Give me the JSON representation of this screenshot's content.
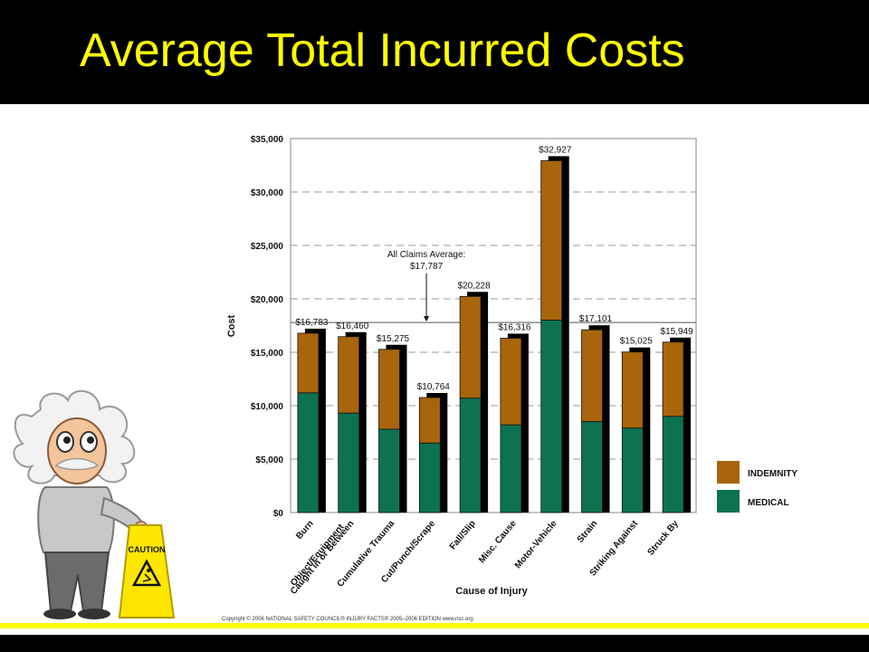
{
  "slide": {
    "title": "Average Total Incurred Costs",
    "copyright": "Copyright © 2006   NATIONAL SAFETY COUNCIL®   INJURY FACTS® 2005–2006 EDITION   www.nsc.org",
    "caution_sign": "CAUTION"
  },
  "colors": {
    "title": "#ffff00",
    "indemnity": "#a8650b",
    "medical": "#0d7252",
    "shadow": "#000000",
    "grid": "#9a9a9a"
  },
  "chart_data": {
    "type": "bar",
    "stacked": true,
    "xlabel": "Cause of Injury",
    "ylabel": "Cost",
    "ylim": [
      0,
      35000
    ],
    "yticks": [
      "$0",
      "$5,000",
      "$10,000",
      "$15,000",
      "$20,000",
      "$25,000",
      "$30,000",
      "$35,000"
    ],
    "grid": "dashed horizontal",
    "legend_position": "right",
    "categories": [
      "Burn",
      "Caught in or Between Object/Equipment",
      "Cumulative Trauma",
      "Cut/Punch/Scrape",
      "Fall/Slip",
      "Misc. Cause",
      "Motor-Vehicle",
      "Strain",
      "Striking Against",
      "Struck By"
    ],
    "category_lines": [
      [
        "Burn"
      ],
      [
        "Caught in or Between",
        "Object/Equipment"
      ],
      [
        "Cumulative Trauma"
      ],
      [
        "Cut/Punch/Scrape"
      ],
      [
        "Fall/Slip"
      ],
      [
        "Misc. Cause"
      ],
      [
        "Motor-Vehicle"
      ],
      [
        "Strain"
      ],
      [
        "Striking Against"
      ],
      [
        "Struck By"
      ]
    ],
    "series": [
      {
        "name": "MEDICAL",
        "values": [
          11200,
          9300,
          7800,
          6500,
          10700,
          8200,
          18000,
          8500,
          7900,
          9000
        ]
      },
      {
        "name": "INDEMNITY",
        "values": [
          5583,
          7160,
          7475,
          4264,
          9528,
          8116,
          14927,
          8601,
          7125,
          6949
        ]
      }
    ],
    "totals": [
      16783,
      16460,
      15275,
      10764,
      20228,
      16316,
      32927,
      17101,
      15025,
      15949
    ],
    "total_labels": [
      "$16,783",
      "$16,460",
      "$15,275",
      "$10,764",
      "$20,228",
      "$16,316",
      "$32,927",
      "$17,101",
      "$15,025",
      "$15,949"
    ],
    "legend": [
      "INDEMNITY",
      "MEDICAL"
    ],
    "average": {
      "value": 17787,
      "label_lines": [
        "All Claims Average:",
        "$17,787"
      ]
    }
  }
}
